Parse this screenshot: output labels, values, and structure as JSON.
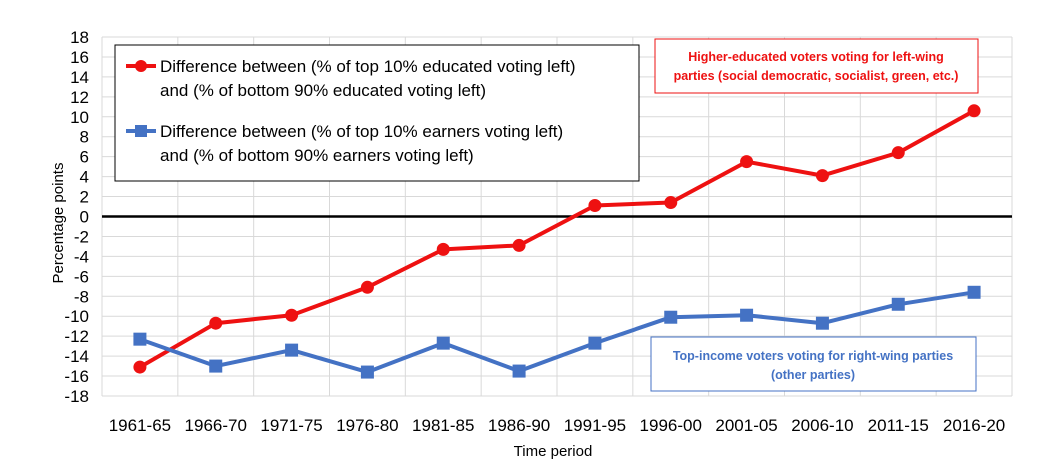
{
  "chart_data": {
    "type": "line",
    "categories": [
      "1961-65",
      "1966-70",
      "1971-75",
      "1976-80",
      "1981-85",
      "1986-90",
      "1991-95",
      "1996-00",
      "2001-05",
      "2006-10",
      "2011-15",
      "2016-20"
    ],
    "series": [
      {
        "name_lines": [
          "Difference between (% of top 10% educated voting left)",
          "and (% of bottom 90% educated voting left)"
        ],
        "color": "#ee1111",
        "marker": "circle",
        "values": [
          -15.1,
          -10.7,
          -9.9,
          -7.1,
          -3.3,
          -2.9,
          1.1,
          1.4,
          5.5,
          4.1,
          6.4,
          10.6
        ]
      },
      {
        "name_lines": [
          "Difference between (% of top 10% earners voting left)",
          "and (% of bottom 90% earners voting left)"
        ],
        "color": "#4472c4",
        "marker": "square",
        "values": [
          -12.3,
          -15.0,
          -13.4,
          -15.6,
          -12.7,
          -15.5,
          -12.7,
          -10.1,
          -9.9,
          -10.7,
          -8.8,
          -7.6
        ]
      }
    ],
    "xlabel": "Time period",
    "ylabel": "Percentage points",
    "ylim": [
      -18,
      18
    ],
    "ytick_step": 2,
    "grid": true,
    "legend_position": "top-left",
    "annotations": [
      {
        "lines": [
          "Higher-educated voters voting for left-wing",
          "parties (social democratic, socialist, green, etc.)"
        ],
        "color": "#ee1111",
        "position": "top-right"
      },
      {
        "lines": [
          "Top-income voters voting for right-wing parties",
          "(other parties)"
        ],
        "color": "#4472c4",
        "position": "bottom-right"
      }
    ]
  }
}
